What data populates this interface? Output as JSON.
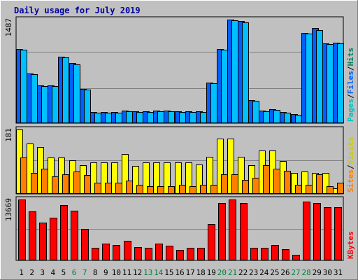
{
  "chart_data": {
    "type": "bar",
    "title": "Daily usage for July 2019",
    "categories": [
      "1",
      "2",
      "3",
      "4",
      "5",
      "6",
      "7",
      "8",
      "9",
      "10",
      "11",
      "12",
      "13",
      "14",
      "15",
      "16",
      "17",
      "18",
      "19",
      "20",
      "21",
      "22",
      "23",
      "24",
      "25",
      "26",
      "27",
      "28",
      "29",
      "30",
      "31"
    ],
    "weekend_days": [
      "6",
      "7",
      "13",
      "14",
      "20",
      "21",
      "27",
      "28"
    ],
    "panels": [
      {
        "name": "pages-files-hits",
        "ymax_label": "1487",
        "ymax": 1487,
        "legend": [
          {
            "text": "Pages",
            "color": "#00c0c0"
          },
          {
            "text": "/",
            "color": "#000000"
          },
          {
            "text": "Files",
            "color": "#0060ff"
          },
          {
            "text": "/",
            "color": "#000000"
          },
          {
            "text": "Hits",
            "color": "#008060"
          }
        ],
        "series": [
          {
            "name": "Files",
            "color": "#0060ff",
            "values": [
              1068,
              714,
              544,
              544,
              952,
              860,
              492,
              159,
              159,
              159,
              179,
              166,
              166,
              180,
              180,
              170,
              166,
              170,
              582,
              1062,
              1487,
              1464,
              336,
              179,
              202,
              161,
              131,
              1300,
              1367,
              1150,
              1157
            ]
          },
          {
            "name": "Pages",
            "color": "#00c0ff",
            "values": [
              1052,
              700,
              531,
              531,
              940,
              847,
              480,
              153,
              153,
              153,
              173,
              160,
              160,
              173,
              173,
              163,
              160,
              163,
              570,
              1050,
              1480,
              1450,
              325,
              173,
              193,
              155,
              125,
              1290,
              1340,
              1135,
              1145
            ]
          }
        ]
      },
      {
        "name": "visits-sites",
        "ymax_label": "181",
        "ymax": 181,
        "legend": [
          {
            "text": "Sites",
            "color": "#ff8000"
          },
          {
            "text": "/",
            "color": "#000000"
          },
          {
            "text": "Visits",
            "color": "#cccc00"
          }
        ],
        "series": [
          {
            "name": "Visits",
            "color": "#ffff00",
            "values": [
              181,
              141,
              131,
              102,
              102,
              95,
              80,
              88,
              88,
              88,
              113,
              78,
              88,
              88,
              88,
              88,
              88,
              82,
              105,
              155,
              155,
              105,
              80,
              121,
              121,
              93,
              60,
              62,
              60,
              60,
              15
            ]
          },
          {
            "name": "Sites",
            "color": "#ff8000",
            "values": [
              102,
              60,
              70,
              50,
              55,
              63,
              53,
              31,
              31,
              31,
              38,
              25,
              22,
              22,
              22,
              25,
              22,
              25,
              25,
              55,
              55,
              40,
              45,
              80,
              70,
              65,
              25,
              25,
              56,
              22,
              31
            ]
          }
        ]
      },
      {
        "name": "kbytes",
        "ymax_label": "13669",
        "ymax": 13669,
        "legend": [
          {
            "text": "KBytes",
            "color": "#ff0000"
          }
        ],
        "series": [
          {
            "name": "KBytes",
            "color": "#ff0000",
            "values": [
              13669,
              10961,
              8465,
              9526,
              12338,
              11195,
              7002,
              2895,
              3794,
              3390,
              4370,
              3000,
              2900,
              3794,
              3290,
              2290,
              2895,
              2895,
              8100,
              12900,
              13669,
              12900,
              2895,
              2895,
              3390,
              2500,
              1200,
              13200,
              12900,
              12000,
              12000
            ]
          }
        ]
      }
    ]
  }
}
